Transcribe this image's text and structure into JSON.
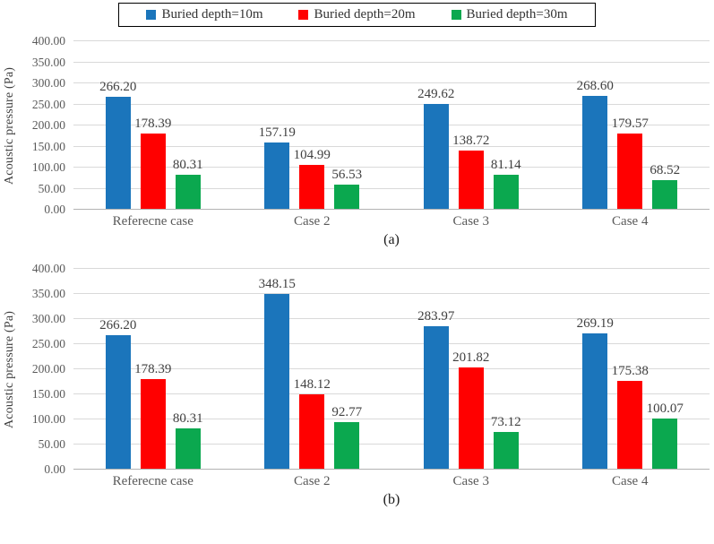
{
  "legend": {
    "items": [
      {
        "label": "Buried depth=10m",
        "color": "#1B75BB"
      },
      {
        "label": "Buried depth=20m",
        "color": "#FF0000"
      },
      {
        "label": "Buried depth=30m",
        "color": "#0BA84F"
      }
    ]
  },
  "y_axis": {
    "title": "Acoustic pressure (Pa)",
    "tick_labels": [
      "400.00",
      "350.00",
      "300.00",
      "250.00",
      "200.00",
      "150.00",
      "100.00",
      "50.00",
      "0.00"
    ]
  },
  "chart_data": [
    {
      "id": "a",
      "type": "bar",
      "caption": "(a)",
      "title": "",
      "xlabel": "",
      "ylabel": "Acoustic pressure (Pa)",
      "ylim": [
        0,
        400
      ],
      "grid": true,
      "legend_position": "top-center",
      "categories": [
        "Referecne case",
        "Case 2",
        "Case 3",
        "Case 4"
      ],
      "series": [
        {
          "name": "Buried depth=10m",
          "color": "#1B75BB",
          "values": [
            266.2,
            157.19,
            249.62,
            268.6
          ]
        },
        {
          "name": "Buried depth=20m",
          "color": "#FF0000",
          "values": [
            178.39,
            104.99,
            138.72,
            179.57
          ]
        },
        {
          "name": "Buried depth=30m",
          "color": "#0BA84F",
          "values": [
            80.31,
            56.53,
            81.14,
            68.52
          ]
        }
      ]
    },
    {
      "id": "b",
      "type": "bar",
      "caption": "(b)",
      "title": "",
      "xlabel": "",
      "ylabel": "Acoustic pressure (Pa)",
      "ylim": [
        0,
        400
      ],
      "grid": true,
      "legend_position": "top-center",
      "categories": [
        "Referecne case",
        "Case 2",
        "Case 3",
        "Case 4"
      ],
      "series": [
        {
          "name": "Buried depth=10m",
          "color": "#1B75BB",
          "values": [
            266.2,
            348.15,
            283.97,
            269.19
          ]
        },
        {
          "name": "Buried depth=20m",
          "color": "#FF0000",
          "values": [
            178.39,
            148.12,
            201.82,
            175.38
          ]
        },
        {
          "name": "Buried depth=30m",
          "color": "#0BA84F",
          "values": [
            80.31,
            92.77,
            73.12,
            100.07
          ]
        }
      ]
    }
  ]
}
